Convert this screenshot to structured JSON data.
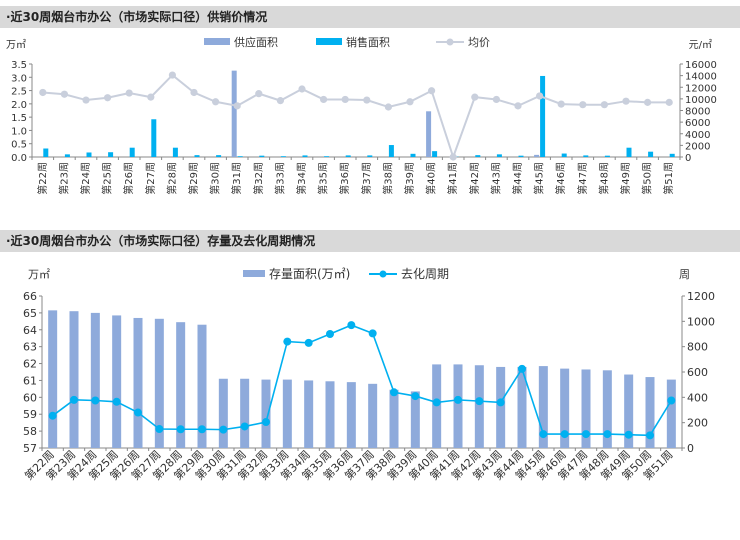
{
  "colors": {
    "supply_bar": "#8eaadb",
    "sales_bar": "#00b0f0",
    "avg_price_line": "#c9cfdc",
    "inventory_bar": "#8eaadb",
    "cycle_line": "#00b0f0",
    "header_bg": "#d9d9d9",
    "axis": "#888888"
  },
  "chart_data": [
    {
      "type": "bar",
      "title": "·近30周烟台市办公（市场实际口径）供销价情况",
      "y_left_unit": "万㎡",
      "y_right_unit": "元/㎡",
      "ylim_left": [
        0,
        3.5
      ],
      "ylim_right": [
        0,
        16000
      ],
      "y_left_ticks": [
        "0.0",
        "0.5",
        "1.0",
        "1.5",
        "2.0",
        "2.5",
        "3.0",
        "3.5"
      ],
      "y_right_ticks": [
        "0",
        "2000",
        "4000",
        "6000",
        "8000",
        "10000",
        "12000",
        "14000",
        "16000"
      ],
      "legend_position": "top-center",
      "categories": [
        "第22周",
        "第23周",
        "第24周",
        "第25周",
        "第26周",
        "第27周",
        "第28周",
        "第29周",
        "第30周",
        "第31周",
        "第32周",
        "第33周",
        "第34周",
        "第35周",
        "第36周",
        "第37周",
        "第38周",
        "第39周",
        "第40周",
        "第41周",
        "第42周",
        "第43周",
        "第44周",
        "第45周",
        "第46周",
        "第47周",
        "第48周",
        "第49周",
        "第50周",
        "第51周"
      ],
      "series": [
        {
          "name": "供应面积",
          "type": "bar",
          "axis": "left",
          "values": [
            0,
            0,
            0,
            0,
            0,
            0,
            0,
            0,
            0,
            3.25,
            0,
            0,
            0,
            0,
            0,
            0,
            0,
            0,
            1.72,
            0,
            0,
            0,
            0,
            0.08,
            0,
            0,
            0,
            0,
            0,
            0
          ]
        },
        {
          "name": "销售面积",
          "type": "bar",
          "axis": "left",
          "values": [
            0.32,
            0.1,
            0.17,
            0.18,
            0.35,
            1.42,
            0.35,
            0.07,
            0.07,
            0.03,
            0.05,
            0.03,
            0.06,
            0.03,
            0.06,
            0.06,
            0.45,
            0.12,
            0.22,
            0.01,
            0.07,
            0.1,
            0.05,
            3.05,
            0.13,
            0.06,
            0.05,
            0.35,
            0.2,
            0.12
          ]
        },
        {
          "name": "均价",
          "type": "line",
          "axis": "right",
          "values": [
            11100,
            10800,
            9800,
            10200,
            11000,
            10300,
            14100,
            11100,
            9500,
            8800,
            10900,
            9700,
            11700,
            9900,
            9900,
            9800,
            8600,
            9500,
            11400,
            0,
            10300,
            9900,
            8800,
            10500,
            9100,
            9000,
            9000,
            9600,
            9400,
            9400
          ]
        }
      ]
    },
    {
      "type": "bar",
      "title": "·近30周烟台市办公（市场实际口径）存量及去化周期情况",
      "y_left_unit": "万㎡",
      "y_right_unit": "周",
      "ylim_left": [
        57,
        66
      ],
      "ylim_right": [
        0,
        1200
      ],
      "y_left_ticks": [
        "57",
        "58",
        "59",
        "60",
        "61",
        "62",
        "63",
        "64",
        "65",
        "66"
      ],
      "y_right_ticks": [
        "0",
        "200",
        "400",
        "600",
        "800",
        "1000",
        "1200"
      ],
      "legend_position": "top-center",
      "categories": [
        "第22周",
        "第23周",
        "第24周",
        "第25周",
        "第26周",
        "第27周",
        "第28周",
        "第29周",
        "第30周",
        "第31周",
        "第32周",
        "第33周",
        "第34周",
        "第35周",
        "第36周",
        "第37周",
        "第38周",
        "第39周",
        "第40周",
        "第41周",
        "第42周",
        "第43周",
        "第44周",
        "第45周",
        "第46周",
        "第47周",
        "第48周",
        "第49周",
        "第50周",
        "第51周"
      ],
      "series": [
        {
          "name": "存量面积(万㎡)",
          "type": "bar",
          "axis": "left",
          "values": [
            65.15,
            65.1,
            65.0,
            64.85,
            64.7,
            64.65,
            64.45,
            64.3,
            61.1,
            61.1,
            61.05,
            61.05,
            61.0,
            60.95,
            60.9,
            60.8,
            60.45,
            60.35,
            61.95,
            61.95,
            61.9,
            61.8,
            61.8,
            61.85,
            61.7,
            61.65,
            61.6,
            61.35,
            61.2,
            61.05
          ]
        },
        {
          "name": "去化周期",
          "type": "line",
          "axis": "right",
          "values": [
            255,
            380,
            375,
            365,
            280,
            150,
            148,
            148,
            145,
            170,
            205,
            840,
            830,
            900,
            970,
            905,
            440,
            410,
            360,
            380,
            370,
            360,
            625,
            110,
            110,
            110,
            110,
            105,
            100,
            375
          ]
        }
      ]
    }
  ]
}
